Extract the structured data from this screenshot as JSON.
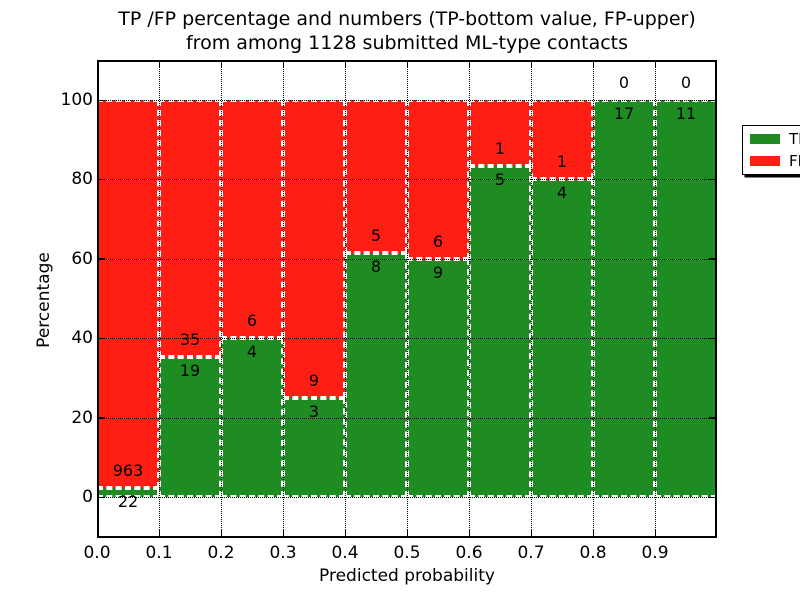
{
  "title": {
    "line1": "TP /FP percentage and numbers (TP-bottom value, FP-upper)",
    "line2": "from among 1128 submitted ML-type contacts"
  },
  "axes": {
    "ylabel": "Percentage",
    "xlabel": "Predicted probability"
  },
  "legend": {
    "items": [
      {
        "label": "TP",
        "color": "#1e8c23"
      },
      {
        "label": "FP",
        "color": "#ff1e14"
      }
    ]
  },
  "chart_data": {
    "type": "bar",
    "stacked": true,
    "title": "TP /FP percentage and numbers (TP-bottom value, FP-upper) from among 1128 submitted ML-type contacts",
    "xlabel": "Predicted probability",
    "ylabel": "Percentage",
    "total_contacts": 1128,
    "x_bins": [
      "0.0-0.1",
      "0.1-0.2",
      "0.2-0.3",
      "0.3-0.4",
      "0.4-0.5",
      "0.5-0.6",
      "0.6-0.7",
      "0.7-0.8",
      "0.8-0.9",
      "0.9-1.0"
    ],
    "series": [
      {
        "name": "TP",
        "color": "#1e8c23",
        "counts": [
          22,
          19,
          4,
          3,
          8,
          9,
          5,
          4,
          17,
          11
        ],
        "pct": [
          2.23,
          35.19,
          40.0,
          25.0,
          61.54,
          60.0,
          83.33,
          80.0,
          100.0,
          100.0
        ]
      },
      {
        "name": "FP",
        "color": "#ff1e14",
        "counts": [
          963,
          35,
          6,
          9,
          5,
          6,
          1,
          1,
          0,
          0
        ],
        "pct": [
          97.77,
          64.81,
          60.0,
          75.0,
          38.46,
          40.0,
          16.67,
          20.0,
          0.0,
          0.0
        ]
      }
    ],
    "yticks": [
      0,
      20,
      40,
      60,
      80,
      100
    ],
    "xticks": [
      "0.0",
      "0.1",
      "0.2",
      "0.3",
      "0.4",
      "0.5",
      "0.6",
      "0.7",
      "0.8",
      "0.9"
    ],
    "ylim": [
      -10.3,
      110.1
    ],
    "grid": "dotted",
    "bar_edge": {
      "color": "#ffffff",
      "style": "dashed"
    },
    "legend_position": "upper right"
  }
}
